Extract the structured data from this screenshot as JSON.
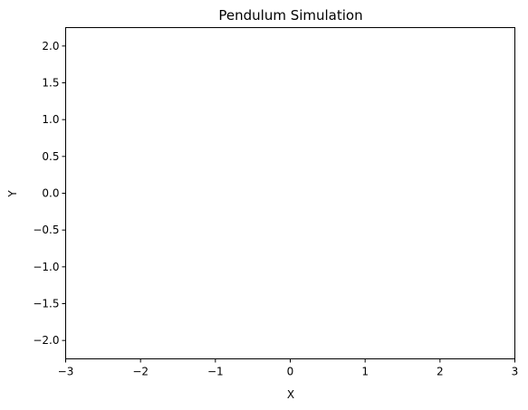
{
  "chart_data": {
    "type": "line",
    "title": "Pendulum Simulation",
    "xlabel": "X",
    "ylabel": "Y",
    "xlim": [
      -3,
      3
    ],
    "ylim": [
      -2.25,
      2.25
    ],
    "x_ticks": [
      -3,
      -2,
      -1,
      0,
      1,
      2,
      3
    ],
    "x_tick_labels": [
      "−3",
      "−2",
      "−1",
      "0",
      "1",
      "2",
      "3"
    ],
    "y_ticks": [
      -2.0,
      -1.5,
      -1.0,
      -0.5,
      0.0,
      0.5,
      1.0,
      1.5,
      2.0
    ],
    "y_tick_labels": [
      "−2.0",
      "−1.5",
      "−1.0",
      "−0.5",
      "0.0",
      "0.5",
      "1.0",
      "1.5",
      "2.0"
    ],
    "series": [],
    "grid": false,
    "legend": "none"
  }
}
